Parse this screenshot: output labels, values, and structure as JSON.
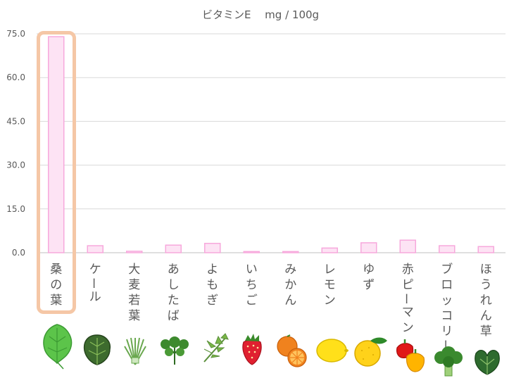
{
  "title": "ビタミンE　 mg / 100g",
  "chart_data": {
    "type": "bar",
    "title": "ビタミンE　 mg / 100g",
    "xlabel": "",
    "ylabel": "",
    "ylim": [
      0,
      75
    ],
    "yticks": [
      "0.0",
      "15.0",
      "30.0",
      "45.0",
      "60.0",
      "75.0"
    ],
    "grid": true,
    "categories": [
      "桑の葉",
      "ケール",
      "大麦若葉",
      "あしたば",
      "よもぎ",
      "いちご",
      "みかん",
      "レモン",
      "ゆず",
      "赤ピーマン",
      "ブロッコリー",
      "ほうれん草"
    ],
    "values": [
      74.0,
      2.4,
      0.5,
      2.6,
      3.2,
      0.4,
      0.4,
      1.6,
      3.4,
      4.3,
      2.4,
      2.1
    ],
    "highlighted_category": "桑の葉",
    "bar_fill": "#fde3f4",
    "bar_stroke": "#f7a8dc",
    "highlight_color": "#f5c7a6"
  },
  "icons": [
    "mulberry-leaf-icon",
    "kale-icon",
    "barley-grass-icon",
    "ashitaba-icon",
    "yomogi-icon",
    "strawberry-icon",
    "mikan-icon",
    "lemon-icon",
    "yuzu-icon",
    "red-pepper-icon",
    "broccoli-icon",
    "spinach-icon"
  ]
}
